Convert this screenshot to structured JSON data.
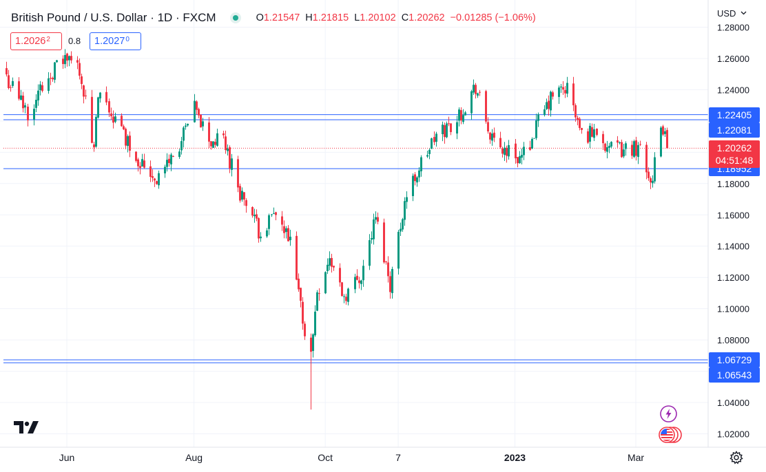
{
  "header": {
    "title": "British Pound / U.S. Dollar · 1D · FXCM",
    "ohlc": [
      {
        "k": "O",
        "v": "1.21547"
      },
      {
        "k": "H",
        "v": "1.21815"
      },
      {
        "k": "L",
        "v": "1.20102"
      },
      {
        "k": "C",
        "v": "1.20262"
      },
      {
        "k": "",
        "v": "−0.01285 (−1.06%)"
      }
    ]
  },
  "trade": {
    "sell_main": "1.2026",
    "sell_sup": "2",
    "spread": "0.8",
    "buy_main": "1.2027",
    "buy_sup": "0"
  },
  "currency_label": "USD",
  "countdown": "04:51:48",
  "colors": {
    "up": "#089981",
    "down": "#f23645",
    "line": "#2962ff",
    "grid": "#f0f3fa",
    "text": "#131722",
    "event": "#9c27b0"
  },
  "icons": [
    "tradingview-logo-icon",
    "chevron-down-icon",
    "gear-icon",
    "lightning-icon",
    "us-flag-icon"
  ],
  "chart_data": {
    "type": "candlestick",
    "title": "British Pound / U.S. Dollar · 1D · FXCM",
    "xlabel": "",
    "ylabel": "",
    "ylim": [
      1.01,
      1.285
    ],
    "y_ticks": [
      "1.02000",
      "1.04000",
      "1.06000",
      "1.08000",
      "1.10000",
      "1.12000",
      "1.14000",
      "1.16000",
      "1.18000",
      "1.20000",
      "1.22000",
      "1.24000",
      "1.26000",
      "1.28000"
    ],
    "x_labels": [
      {
        "label": "Jun",
        "date": "2022-06-01"
      },
      {
        "label": "Aug",
        "date": "2022-08-01"
      },
      {
        "label": "Oct",
        "date": "2022-10-03"
      },
      {
        "label": "7",
        "date": "2022-11-07"
      },
      {
        "label": "2023",
        "date": "2023-01-02"
      },
      {
        "label": "Mar",
        "date": "2023-03-01"
      }
    ],
    "last_price": "1.20262",
    "horizontal_lines": [
      "1.22405",
      "1.22081",
      "1.18952",
      "1.06729",
      "1.06543"
    ],
    "close_path": [
      [
        "2022-05-03",
        1.248
      ],
      [
        "2022-05-13",
        1.226
      ],
      [
        "2022-05-24",
        1.251
      ],
      [
        "2022-05-31",
        1.26
      ],
      [
        "2022-06-07",
        1.254
      ],
      [
        "2022-06-14",
        1.2
      ],
      [
        "2022-06-16",
        1.235
      ],
      [
        "2022-06-22",
        1.225
      ],
      [
        "2022-07-05",
        1.196
      ],
      [
        "2022-07-14",
        1.183
      ],
      [
        "2022-07-25",
        1.204
      ],
      [
        "2022-08-01",
        1.227
      ],
      [
        "2022-08-09",
        1.206
      ],
      [
        "2022-08-15",
        1.208
      ],
      [
        "2022-08-23",
        1.175
      ],
      [
        "2022-09-01",
        1.15
      ],
      [
        "2022-09-09",
        1.159
      ],
      [
        "2022-09-16",
        1.141
      ],
      [
        "2022-09-23",
        1.086
      ],
      [
        "2022-09-26",
        1.07
      ],
      [
        "2022-09-29",
        1.112
      ],
      [
        "2022-10-05",
        1.132
      ],
      [
        "2022-10-12",
        1.108
      ],
      [
        "2022-10-20",
        1.122
      ],
      [
        "2022-10-27",
        1.158
      ],
      [
        "2022-11-03",
        1.116
      ],
      [
        "2022-11-10",
        1.169
      ],
      [
        "2022-11-17",
        1.19
      ],
      [
        "2022-11-25",
        1.21
      ],
      [
        "2022-12-05",
        1.221
      ],
      [
        "2022-12-14",
        1.242
      ],
      [
        "2022-12-22",
        1.206
      ],
      [
        "2023-01-05",
        1.196
      ],
      [
        "2023-01-12",
        1.216
      ],
      [
        "2023-01-20",
        1.236
      ],
      [
        "2023-01-27",
        1.241
      ],
      [
        "2023-02-03",
        1.21
      ],
      [
        "2023-02-10",
        1.214
      ],
      [
        "2023-02-17",
        1.201
      ],
      [
        "2023-02-24",
        1.202
      ],
      [
        "2023-03-03",
        1.204
      ],
      [
        "2023-03-08",
        1.182
      ],
      [
        "2023-03-14",
        1.216
      ],
      [
        "2023-03-16",
        1.2026
      ]
    ],
    "notable_extremes": {
      "high": [
        "2022-05-31",
        1.266
      ],
      "low": [
        "2022-09-26",
        1.0355
      ]
    }
  }
}
